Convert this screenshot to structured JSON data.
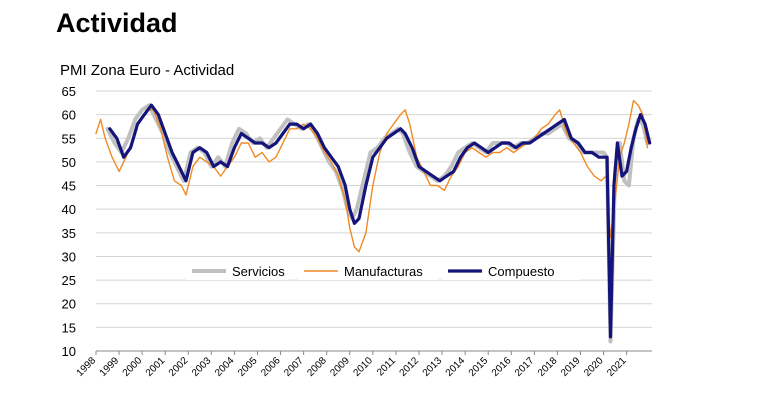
{
  "page": {
    "title": "Actividad"
  },
  "chart_data": {
    "type": "line",
    "title": "PMI Zona Euro - Actividad",
    "xlabel": "",
    "ylabel": "",
    "ylim": [
      10,
      65
    ],
    "yticks": [
      10,
      15,
      20,
      25,
      30,
      35,
      40,
      45,
      50,
      55,
      60,
      65
    ],
    "xlim": [
      1998,
      2022.1
    ],
    "xticks": [
      "1998",
      "1999",
      "2000",
      "2001",
      "2002",
      "2003",
      "2004",
      "2005",
      "2006",
      "2007",
      "2008",
      "2009",
      "2010",
      "2011",
      "2012",
      "2013",
      "2014",
      "2015",
      "2016",
      "2017",
      "2018",
      "2019",
      "2020",
      "2021"
    ],
    "grid": "horizontal",
    "legend_position": "inside-middle",
    "series": [
      {
        "name": "Servicios",
        "color": "#c0c0c0",
        "x": [
          1998.5,
          1998.8,
          1999.1,
          1999.4,
          1999.7,
          2000.0,
          2000.3,
          2000.6,
          2000.9,
          2001.2,
          2001.5,
          2001.8,
          2002.1,
          2002.4,
          2002.7,
          2003.0,
          2003.3,
          2003.6,
          2003.9,
          2004.2,
          2004.5,
          2004.8,
          2005.1,
          2005.4,
          2005.7,
          2006.0,
          2006.3,
          2006.6,
          2006.9,
          2007.2,
          2007.5,
          2007.8,
          2008.1,
          2008.4,
          2008.7,
          2008.9,
          2009.1,
          2009.3,
          2009.6,
          2009.9,
          2010.2,
          2010.5,
          2010.8,
          2011.1,
          2011.3,
          2011.6,
          2011.9,
          2012.2,
          2012.5,
          2012.8,
          2013.1,
          2013.4,
          2013.7,
          2014.0,
          2014.3,
          2014.6,
          2014.9,
          2015.2,
          2015.5,
          2015.8,
          2016.1,
          2016.4,
          2016.7,
          2017.0,
          2017.3,
          2017.6,
          2017.9,
          2018.2,
          2018.5,
          2018.8,
          2019.1,
          2019.4,
          2019.7,
          2020.0,
          2020.15,
          2020.3,
          2020.5,
          2020.7,
          2020.9,
          2021.1,
          2021.3,
          2021.5,
          2021.7,
          2021.9
        ],
        "values": [
          57,
          54,
          52,
          55,
          59,
          61,
          62,
          59,
          56,
          52,
          49,
          46,
          52,
          53,
          52,
          49,
          51,
          49,
          54,
          57,
          56,
          54,
          55,
          53,
          55,
          57,
          59,
          58,
          57,
          58,
          56,
          53,
          50,
          48,
          44,
          40,
          38,
          40,
          46,
          52,
          53,
          55,
          56,
          57,
          56,
          52,
          49,
          48,
          47,
          46,
          47,
          49,
          52,
          53,
          54,
          53,
          52,
          54,
          54,
          54,
          53,
          54,
          54,
          55,
          56,
          56,
          57,
          58,
          55,
          54,
          52,
          52,
          52,
          52,
          51,
          12,
          48,
          54,
          46,
          45,
          55,
          59,
          58,
          54
        ]
      },
      {
        "name": "Manufacturas",
        "color": "#f08a24",
        "x": [
          1998.0,
          1998.2,
          1998.4,
          1998.7,
          1999.0,
          1999.3,
          1999.6,
          1999.9,
          2000.2,
          2000.5,
          2000.8,
          2001.1,
          2001.4,
          2001.7,
          2001.9,
          2002.2,
          2002.5,
          2002.8,
          2003.1,
          2003.4,
          2003.7,
          2004.0,
          2004.3,
          2004.6,
          2004.9,
          2005.2,
          2005.5,
          2005.8,
          2006.1,
          2006.4,
          2006.7,
          2007.0,
          2007.3,
          2007.6,
          2007.9,
          2008.2,
          2008.5,
          2008.8,
          2009.0,
          2009.2,
          2009.4,
          2009.7,
          2010.0,
          2010.3,
          2010.6,
          2010.9,
          2011.2,
          2011.4,
          2011.6,
          2011.9,
          2012.2,
          2012.5,
          2012.8,
          2013.1,
          2013.4,
          2013.7,
          2014.0,
          2014.3,
          2014.6,
          2014.9,
          2015.2,
          2015.5,
          2015.8,
          2016.1,
          2016.4,
          2016.7,
          2017.0,
          2017.3,
          2017.6,
          2017.9,
          2018.1,
          2018.4,
          2018.7,
          2019.0,
          2019.3,
          2019.6,
          2019.9,
          2020.1,
          2020.3,
          2020.5,
          2020.7,
          2020.9,
          2021.1,
          2021.3,
          2021.5,
          2021.7,
          2021.9
        ],
        "values": [
          56,
          59,
          55,
          51,
          48,
          51,
          55,
          59,
          61,
          61,
          57,
          51,
          46,
          45,
          43,
          49,
          51,
          50,
          49,
          47,
          49,
          51,
          54,
          54,
          51,
          52,
          50,
          51,
          54,
          57,
          57,
          58,
          57,
          55,
          52,
          50,
          47,
          42,
          36,
          32,
          31,
          35,
          45,
          52,
          56,
          58,
          60,
          61,
          58,
          51,
          48,
          45,
          45,
          44,
          47,
          49,
          52,
          53,
          52,
          51,
          52,
          52,
          53,
          52,
          53,
          54,
          55,
          57,
          58,
          60,
          61,
          56,
          54,
          52,
          49,
          47,
          46,
          47,
          34,
          42,
          51,
          54,
          58,
          63,
          62,
          60,
          53
        ]
      },
      {
        "name": "Compuesto",
        "color": "#14147a",
        "x": [
          1998.6,
          1998.9,
          1999.2,
          1999.5,
          1999.8,
          2000.1,
          2000.4,
          2000.7,
          2001.0,
          2001.3,
          2001.6,
          2001.9,
          2002.2,
          2002.5,
          2002.8,
          2003.1,
          2003.4,
          2003.7,
          2004.0,
          2004.3,
          2004.6,
          2004.9,
          2005.2,
          2005.5,
          2005.8,
          2006.1,
          2006.4,
          2006.7,
          2007.0,
          2007.3,
          2007.6,
          2007.9,
          2008.2,
          2008.5,
          2008.8,
          2009.0,
          2009.2,
          2009.4,
          2009.7,
          2010.0,
          2010.3,
          2010.6,
          2010.9,
          2011.2,
          2011.4,
          2011.7,
          2012.0,
          2012.3,
          2012.6,
          2012.9,
          2013.2,
          2013.5,
          2013.8,
          2014.1,
          2014.4,
          2014.7,
          2015.0,
          2015.3,
          2015.6,
          2015.9,
          2016.2,
          2016.5,
          2016.8,
          2017.1,
          2017.4,
          2017.7,
          2018.0,
          2018.3,
          2018.6,
          2018.9,
          2019.2,
          2019.5,
          2019.8,
          2020.0,
          2020.15,
          2020.3,
          2020.45,
          2020.6,
          2020.8,
          2021.0,
          2021.2,
          2021.4,
          2021.6,
          2021.8,
          2022.0
        ],
        "values": [
          57,
          55,
          51,
          53,
          58,
          60,
          62,
          60,
          56,
          52,
          49,
          46,
          52,
          53,
          52,
          49,
          50,
          49,
          53,
          56,
          55,
          54,
          54,
          53,
          54,
          56,
          58,
          58,
          57,
          58,
          56,
          53,
          51,
          49,
          45,
          40,
          37,
          38,
          45,
          51,
          53,
          55,
          56,
          57,
          56,
          53,
          49,
          48,
          47,
          46,
          47,
          48,
          51,
          53,
          54,
          53,
          52,
          53,
          54,
          54,
          53,
          54,
          54,
          55,
          56,
          57,
          58,
          59,
          55,
          54,
          52,
          52,
          51,
          51,
          51,
          13,
          45,
          54,
          47,
          48,
          53,
          57,
          60,
          58,
          54
        ]
      }
    ]
  }
}
